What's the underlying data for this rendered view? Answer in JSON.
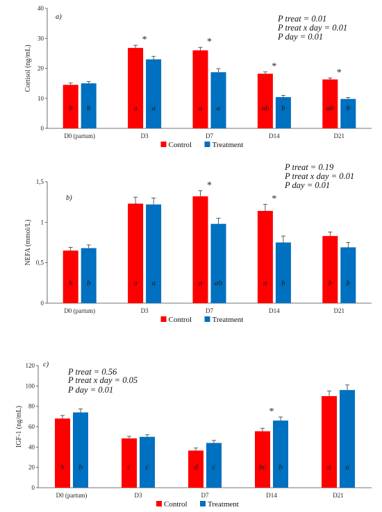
{
  "chart_data": [
    {
      "type": "bar",
      "panel_label": "a)",
      "ylabel": "Cortisol (ng/mL)",
      "ylim": [
        0,
        40
      ],
      "yticks": [
        0,
        10,
        20,
        30,
        40
      ],
      "categories": [
        "D0 (partum)",
        "D3",
        "D7",
        "D14",
        "D21"
      ],
      "series": [
        {
          "name": "Control",
          "color": "#ff0000",
          "values": [
            14.5,
            26.8,
            26.0,
            18.2,
            16.3
          ],
          "errors": [
            0.6,
            0.9,
            1.0,
            0.6,
            0.5
          ],
          "letters": [
            "b",
            "a",
            "a",
            "ab",
            "ab"
          ]
        },
        {
          "name": "Treatment",
          "color": "#0070c0",
          "values": [
            15.0,
            23.0,
            18.7,
            10.4,
            9.8
          ],
          "errors": [
            0.6,
            1.0,
            1.2,
            0.6,
            0.5
          ],
          "letters": [
            "b",
            "a",
            "a",
            "b",
            "b"
          ]
        }
      ],
      "asterisks": [
        false,
        true,
        true,
        true,
        true
      ],
      "stats": [
        "P treat = 0.01",
        "P treat x day = 0.01",
        "P day = 0.01"
      ]
    },
    {
      "type": "bar",
      "panel_label": "b)",
      "ylabel": "NEFA (mmol/L)",
      "ylim": [
        0,
        1.5
      ],
      "yticks": [
        0,
        0.5,
        1,
        1.5
      ],
      "ytick_labels": [
        "0",
        "0,5",
        "1",
        "1,5"
      ],
      "categories": [
        "D0 (partum)",
        "D3",
        "D7",
        "D14",
        "D21"
      ],
      "series": [
        {
          "name": "Control",
          "color": "#ff0000",
          "values": [
            0.65,
            1.23,
            1.32,
            1.14,
            0.83
          ],
          "errors": [
            0.04,
            0.08,
            0.07,
            0.08,
            0.05
          ],
          "letters": [
            "b",
            "a",
            "a",
            "a",
            "b"
          ]
        },
        {
          "name": "Treatment",
          "color": "#0070c0",
          "values": [
            0.68,
            1.22,
            0.98,
            0.75,
            0.69
          ],
          "errors": [
            0.04,
            0.08,
            0.07,
            0.08,
            0.06
          ],
          "letters": [
            "b",
            "a",
            "ab",
            "b",
            "b"
          ]
        }
      ],
      "asterisks": [
        false,
        false,
        true,
        true,
        false
      ],
      "stats": [
        "P treat = 0.19",
        "P treat x day = 0.01",
        "P day = 0.01"
      ]
    },
    {
      "type": "bar",
      "panel_label": "c)",
      "ylabel": "IGF-1 (ng/mL)",
      "ylim": [
        0,
        120
      ],
      "yticks": [
        0,
        20,
        40,
        60,
        80,
        100,
        120
      ],
      "categories": [
        "D0 (partum)",
        "D3",
        "D7",
        "D14",
        "D21"
      ],
      "series": [
        {
          "name": "Control",
          "color": "#ff0000",
          "values": [
            68,
            48.5,
            36.5,
            55.5,
            90
          ],
          "errors": [
            3,
            2,
            2.5,
            3,
            5
          ],
          "letters": [
            "b",
            "c",
            "d",
            "bc",
            "a"
          ]
        },
        {
          "name": "Treatment",
          "color": "#0070c0",
          "values": [
            74,
            50,
            44,
            66,
            96
          ],
          "errors": [
            3.5,
            2,
            2.5,
            3.5,
            5
          ],
          "letters": [
            "b",
            "c",
            "c",
            "b",
            "a"
          ]
        }
      ],
      "asterisks": [
        false,
        false,
        false,
        true,
        false
      ],
      "stats": [
        "P treat = 0.56",
        "P treat x day = 0.05",
        "P day = 0.01"
      ]
    }
  ]
}
